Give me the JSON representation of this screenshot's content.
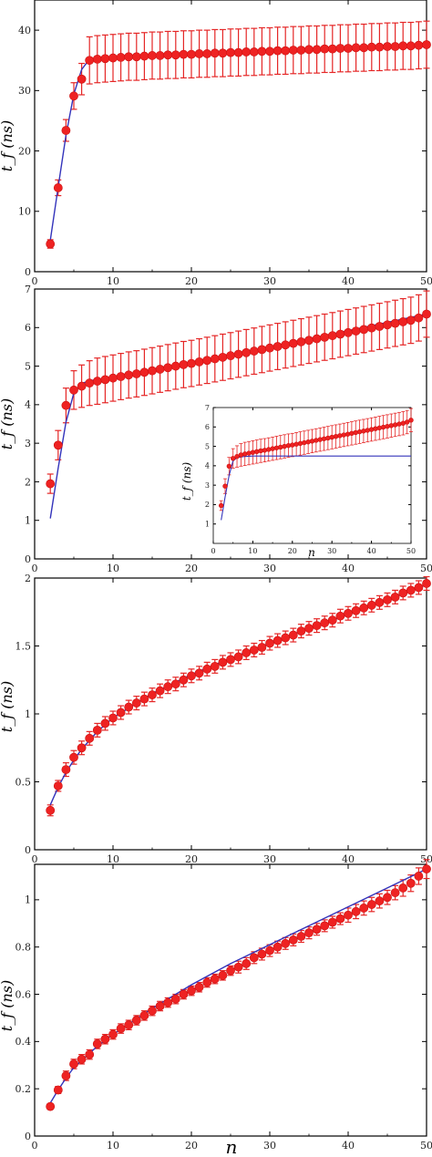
{
  "figure": {
    "shared_xlabel": "n",
    "colors": {
      "marker": "#ee2222",
      "errorbar": "#e52626",
      "fit": "#3333bb",
      "axis": "#000000",
      "background": "#ffffff"
    }
  },
  "chart_data": [
    {
      "type": "scatter",
      "panel": "a",
      "title": "",
      "xlabel": "",
      "ylabel": "t_f (ns)",
      "xlim": [
        0,
        50
      ],
      "ylim": [
        0,
        45
      ],
      "xticks": [
        "0",
        "10",
        "20",
        "30",
        "40",
        "50"
      ],
      "yticks": [
        "0",
        "10",
        "20",
        "30",
        "40"
      ],
      "series": [
        {
          "x": [
            2,
            3,
            4,
            5,
            6,
            7,
            8,
            9,
            10,
            11,
            12,
            13,
            14,
            15,
            16,
            17,
            18,
            19,
            20,
            21,
            22,
            23,
            24,
            25,
            26,
            27,
            28,
            29,
            30,
            31,
            32,
            33,
            34,
            35,
            36,
            37,
            38,
            39,
            40,
            41,
            42,
            43,
            44,
            45,
            46,
            47,
            48,
            49,
            50
          ],
          "y": [
            4.6,
            13.9,
            23.4,
            29.1,
            31.9,
            35.0,
            35.2,
            35.3,
            35.4,
            35.5,
            35.6,
            35.6,
            35.7,
            35.8,
            35.8,
            35.9,
            35.9,
            36.0,
            36.0,
            36.1,
            36.1,
            36.2,
            36.2,
            36.3,
            36.3,
            36.4,
            36.4,
            36.5,
            36.5,
            36.6,
            36.6,
            36.7,
            36.7,
            36.8,
            36.8,
            36.9,
            36.9,
            37.0,
            37.0,
            37.1,
            37.1,
            37.2,
            37.2,
            37.3,
            37.3,
            37.4,
            37.4,
            37.5,
            37.6
          ],
          "err": [
            0.7,
            1.3,
            1.8,
            2.2,
            2.6,
            3.9,
            3.9,
            3.9,
            3.9,
            3.9,
            3.9,
            3.9,
            3.9,
            3.9,
            3.9,
            3.9,
            3.9,
            3.9,
            3.9,
            3.9,
            3.9,
            3.9,
            3.9,
            3.9,
            3.9,
            3.9,
            3.9,
            3.9,
            3.9,
            3.9,
            3.9,
            3.9,
            3.9,
            3.9,
            3.9,
            3.9,
            3.9,
            3.9,
            3.9,
            3.9,
            3.9,
            3.9,
            3.9,
            3.9,
            3.9,
            3.9,
            3.9,
            3.9,
            3.9
          ]
        }
      ],
      "fit": {
        "x": [
          2,
          3,
          4,
          5,
          6,
          7,
          10,
          20,
          30,
          40,
          50
        ],
        "y": [
          5.2,
          14.0,
          22.6,
          29.4,
          33.5,
          35.2,
          35.5,
          36.1,
          36.7,
          37.2,
          37.7
        ]
      }
    },
    {
      "type": "scatter",
      "panel": "b",
      "title": "",
      "xlabel": "",
      "ylabel": "t_f (ns)",
      "xlim": [
        0,
        50
      ],
      "ylim": [
        0,
        7
      ],
      "xticks": [
        "0",
        "10",
        "20",
        "30",
        "40",
        "50"
      ],
      "yticks": [
        "0",
        "1",
        "2",
        "3",
        "4",
        "5",
        "6",
        "7"
      ],
      "series": [
        {
          "x": [
            2,
            3,
            4,
            5,
            6,
            7,
            8,
            9,
            10,
            11,
            12,
            13,
            14,
            15,
            16,
            17,
            18,
            19,
            20,
            21,
            22,
            23,
            24,
            25,
            26,
            27,
            28,
            29,
            30,
            31,
            32,
            33,
            34,
            35,
            36,
            37,
            38,
            39,
            40,
            41,
            42,
            43,
            44,
            45,
            46,
            47,
            48,
            49,
            50
          ],
          "y": [
            1.95,
            2.95,
            3.98,
            4.38,
            4.48,
            4.56,
            4.61,
            4.65,
            4.69,
            4.73,
            4.77,
            4.8,
            4.84,
            4.88,
            4.92,
            4.96,
            5.0,
            5.04,
            5.07,
            5.11,
            5.15,
            5.19,
            5.23,
            5.27,
            5.31,
            5.35,
            5.39,
            5.43,
            5.47,
            5.51,
            5.55,
            5.59,
            5.63,
            5.67,
            5.71,
            5.75,
            5.79,
            5.83,
            5.87,
            5.91,
            5.95,
            5.99,
            6.03,
            6.07,
            6.11,
            6.15,
            6.19,
            6.25,
            6.35
          ],
          "err": [
            0.25,
            0.38,
            0.45,
            0.5,
            0.55,
            0.58,
            0.6,
            0.6,
            0.6,
            0.6,
            0.6,
            0.6,
            0.6,
            0.6,
            0.6,
            0.6,
            0.6,
            0.6,
            0.6,
            0.6,
            0.6,
            0.6,
            0.6,
            0.6,
            0.6,
            0.6,
            0.6,
            0.6,
            0.6,
            0.6,
            0.6,
            0.6,
            0.6,
            0.6,
            0.6,
            0.6,
            0.6,
            0.6,
            0.6,
            0.6,
            0.6,
            0.6,
            0.6,
            0.6,
            0.6,
            0.6,
            0.6,
            0.6,
            0.6
          ]
        }
      ],
      "fit": {
        "x": [
          2,
          3,
          4,
          5,
          6,
          7,
          10,
          20,
          30,
          40,
          50
        ],
        "y": [
          1.05,
          2.35,
          3.55,
          4.3,
          4.55,
          4.62,
          4.72,
          5.1,
          5.5,
          5.92,
          6.35
        ]
      },
      "inset": {
        "xlabel": "n",
        "ylabel": "t_f (ns)",
        "xlim": [
          0,
          50
        ],
        "ylim": [
          0,
          7
        ],
        "xticks": [
          "0",
          "10",
          "20",
          "30",
          "40",
          "50"
        ],
        "yticks": [
          "1",
          "2",
          "3",
          "4",
          "5",
          "6",
          "7"
        ],
        "series": [
          {
            "x": [
              2,
              3,
              4,
              5,
              6,
              7,
              8,
              9,
              10,
              11,
              12,
              13,
              14,
              15,
              16,
              17,
              18,
              19,
              20,
              21,
              22,
              23,
              24,
              25,
              26,
              27,
              28,
              29,
              30,
              31,
              32,
              33,
              34,
              35,
              36,
              37,
              38,
              39,
              40,
              41,
              42,
              43,
              44,
              45,
              46,
              47,
              48,
              49,
              50
            ],
            "y": [
              1.95,
              2.95,
              3.98,
              4.38,
              4.48,
              4.56,
              4.61,
              4.65,
              4.69,
              4.73,
              4.77,
              4.8,
              4.84,
              4.88,
              4.92,
              4.96,
              5.0,
              5.04,
              5.07,
              5.11,
              5.15,
              5.19,
              5.23,
              5.27,
              5.31,
              5.35,
              5.39,
              5.43,
              5.47,
              5.51,
              5.55,
              5.59,
              5.63,
              5.67,
              5.71,
              5.75,
              5.79,
              5.83,
              5.87,
              5.91,
              5.95,
              5.99,
              6.03,
              6.07,
              6.11,
              6.15,
              6.19,
              6.25,
              6.35
            ],
            "err": [
              0.25,
              0.38,
              0.45,
              0.5,
              0.55,
              0.58,
              0.6,
              0.6,
              0.6,
              0.6,
              0.6,
              0.6,
              0.6,
              0.6,
              0.6,
              0.6,
              0.6,
              0.6,
              0.6,
              0.6,
              0.6,
              0.6,
              0.6,
              0.6,
              0.6,
              0.6,
              0.6,
              0.6,
              0.6,
              0.6,
              0.6,
              0.6,
              0.6,
              0.6,
              0.6,
              0.6,
              0.6,
              0.6,
              0.6,
              0.6,
              0.6,
              0.6,
              0.6,
              0.6,
              0.6,
              0.6,
              0.6,
              0.6,
              0.6
            ]
          }
        ],
        "fit": {
          "x": [
            2,
            3,
            4,
            5,
            6,
            8,
            10,
            20,
            30,
            40,
            50
          ],
          "y": [
            1.2,
            2.4,
            3.5,
            4.25,
            4.42,
            4.48,
            4.5,
            4.5,
            4.5,
            4.5,
            4.5
          ]
        }
      }
    },
    {
      "type": "scatter",
      "panel": "c",
      "title": "",
      "xlabel": "",
      "ylabel": "t_f (ns)",
      "xlim": [
        0,
        50
      ],
      "ylim": [
        0,
        2
      ],
      "xticks": [
        "0",
        "10",
        "20",
        "30",
        "40",
        "50"
      ],
      "yticks": [
        "0",
        "0.5",
        "1",
        "1.5",
        "2"
      ],
      "series": [
        {
          "x": [
            2,
            3,
            4,
            5,
            6,
            7,
            8,
            9,
            10,
            11,
            12,
            13,
            14,
            15,
            16,
            17,
            18,
            19,
            20,
            21,
            22,
            23,
            24,
            25,
            26,
            27,
            28,
            29,
            30,
            31,
            32,
            33,
            34,
            35,
            36,
            37,
            38,
            39,
            40,
            41,
            42,
            43,
            44,
            45,
            46,
            47,
            48,
            49,
            50
          ],
          "y": [
            0.29,
            0.47,
            0.59,
            0.68,
            0.75,
            0.82,
            0.88,
            0.93,
            0.97,
            1.01,
            1.05,
            1.08,
            1.11,
            1.14,
            1.17,
            1.2,
            1.22,
            1.25,
            1.28,
            1.3,
            1.33,
            1.35,
            1.38,
            1.4,
            1.42,
            1.45,
            1.47,
            1.49,
            1.52,
            1.54,
            1.56,
            1.58,
            1.61,
            1.63,
            1.65,
            1.67,
            1.69,
            1.72,
            1.74,
            1.76,
            1.78,
            1.8,
            1.82,
            1.84,
            1.86,
            1.89,
            1.91,
            1.93,
            1.96
          ],
          "err": [
            0.04,
            0.04,
            0.05,
            0.05,
            0.05,
            0.05,
            0.05,
            0.05,
            0.05,
            0.05,
            0.05,
            0.05,
            0.05,
            0.05,
            0.05,
            0.05,
            0.05,
            0.05,
            0.05,
            0.05,
            0.05,
            0.05,
            0.05,
            0.05,
            0.05,
            0.05,
            0.05,
            0.05,
            0.05,
            0.05,
            0.05,
            0.05,
            0.05,
            0.05,
            0.05,
            0.05,
            0.05,
            0.05,
            0.05,
            0.05,
            0.05,
            0.05,
            0.05,
            0.05,
            0.05,
            0.05,
            0.05,
            0.05,
            0.05
          ]
        }
      ],
      "fit": {
        "x": [
          2,
          3,
          4,
          5,
          6,
          8,
          10,
          15,
          20,
          25,
          30,
          35,
          40,
          45,
          50
        ],
        "y": [
          0.33,
          0.46,
          0.57,
          0.66,
          0.74,
          0.87,
          0.97,
          1.15,
          1.29,
          1.41,
          1.52,
          1.63,
          1.73,
          1.84,
          1.95
        ]
      }
    },
    {
      "type": "scatter",
      "panel": "d",
      "title": "",
      "xlabel": "n",
      "ylabel": "t_f (ns)",
      "xlim": [
        0,
        50
      ],
      "ylim": [
        0,
        1.15
      ],
      "xticks": [
        "0",
        "10",
        "20",
        "30",
        "40",
        "50"
      ],
      "yticks": [
        "0",
        "0.2",
        "0.4",
        "0.6",
        "0.8",
        "1"
      ],
      "series": [
        {
          "x": [
            2,
            3,
            4,
            5,
            6,
            7,
            8,
            9,
            10,
            11,
            12,
            13,
            14,
            15,
            16,
            17,
            18,
            19,
            20,
            21,
            22,
            23,
            24,
            25,
            26,
            27,
            28,
            29,
            30,
            31,
            32,
            33,
            34,
            35,
            36,
            37,
            38,
            39,
            40,
            41,
            42,
            43,
            44,
            45,
            46,
            47,
            48,
            49,
            50
          ],
          "y": [
            0.125,
            0.195,
            0.255,
            0.305,
            0.325,
            0.345,
            0.39,
            0.41,
            0.43,
            0.455,
            0.47,
            0.49,
            0.51,
            0.53,
            0.55,
            0.565,
            0.58,
            0.6,
            0.615,
            0.63,
            0.65,
            0.665,
            0.68,
            0.7,
            0.715,
            0.73,
            0.755,
            0.77,
            0.785,
            0.8,
            0.815,
            0.83,
            0.845,
            0.86,
            0.875,
            0.89,
            0.905,
            0.92,
            0.935,
            0.95,
            0.965,
            0.98,
            0.995,
            1.01,
            1.03,
            1.05,
            1.07,
            1.1,
            1.13
          ],
          "err": [
            0.01,
            0.015,
            0.02,
            0.02,
            0.02,
            0.02,
            0.02,
            0.02,
            0.02,
            0.02,
            0.02,
            0.02,
            0.02,
            0.02,
            0.02,
            0.02,
            0.02,
            0.02,
            0.02,
            0.02,
            0.02,
            0.02,
            0.02,
            0.02,
            0.025,
            0.025,
            0.025,
            0.025,
            0.025,
            0.025,
            0.025,
            0.025,
            0.025,
            0.025,
            0.025,
            0.025,
            0.025,
            0.025,
            0.03,
            0.03,
            0.03,
            0.03,
            0.03,
            0.03,
            0.03,
            0.035,
            0.035,
            0.035,
            0.04
          ]
        }
      ],
      "fit": {
        "x": [
          2,
          3,
          4,
          5,
          6,
          8,
          10,
          15,
          20,
          25,
          30,
          35,
          40,
          45,
          50
        ],
        "y": [
          0.14,
          0.195,
          0.245,
          0.29,
          0.32,
          0.38,
          0.43,
          0.54,
          0.64,
          0.73,
          0.81,
          0.89,
          0.97,
          1.05,
          1.13
        ]
      }
    }
  ]
}
